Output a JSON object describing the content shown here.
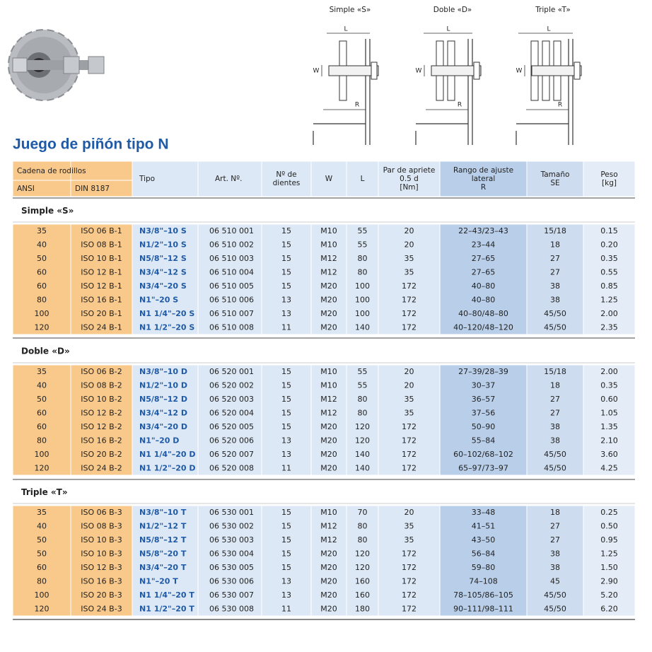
{
  "title": "Juego de piñón tipo N",
  "diagrams": [
    {
      "title": "Simple «S»",
      "labels": [
        "L",
        "W",
        "R"
      ]
    },
    {
      "title": "Doble «D»",
      "labels": [
        "L",
        "W",
        "R"
      ]
    },
    {
      "title": "Triple «T»",
      "labels": [
        "L",
        "W",
        "R"
      ]
    }
  ],
  "table": {
    "group_header": "Cadena de rodillos",
    "columns": [
      [
        "ANSI"
      ],
      [
        "DIN 8187"
      ],
      [
        "Tipo"
      ],
      [
        "Art. Nº."
      ],
      [
        "Nº de",
        "dientes"
      ],
      [
        "W"
      ],
      [
        "L"
      ],
      [
        "Par de apriete",
        "0.5 d",
        "[Nm]"
      ],
      [
        "Rango de ajuste",
        "lateral",
        "R"
      ],
      [
        "Tamaño",
        "SE"
      ],
      [
        "Peso",
        "[kg]"
      ]
    ],
    "sections": [
      {
        "title": "Simple «S»",
        "rows": [
          [
            "35",
            "ISO 06 B-1",
            "N3/8\"–10 S",
            "06 510 001",
            "15",
            "M10",
            "55",
            "20",
            "22–43/23–43",
            "15/18",
            "0.15"
          ],
          [
            "40",
            "ISO 08 B-1",
            "N1/2\"–10 S",
            "06 510 002",
            "15",
            "M10",
            "55",
            "20",
            "23–44",
            "18",
            "0.20"
          ],
          [
            "50",
            "ISO 10 B-1",
            "N5/8\"–12 S",
            "06 510 003",
            "15",
            "M12",
            "80",
            "35",
            "27–65",
            "27",
            "0.35"
          ],
          [
            "60",
            "ISO 12 B-1",
            "N3/4\"–12 S",
            "06 510 004",
            "15",
            "M12",
            "80",
            "35",
            "27–65",
            "27",
            "0.55"
          ],
          [
            "60",
            "ISO 12 B-1",
            "N3/4\"–20 S",
            "06 510 005",
            "15",
            "M20",
            "100",
            "172",
            "40–80",
            "38",
            "0.85"
          ],
          [
            "80",
            "ISO 16 B-1",
            "N1\"–20 S",
            "06 510 006",
            "13",
            "M20",
            "100",
            "172",
            "40–80",
            "38",
            "1.25"
          ],
          [
            "100",
            "ISO 20 B-1",
            "N1 1/4\"–20 S",
            "06 510 007",
            "13",
            "M20",
            "100",
            "172",
            "40–80/48–80",
            "45/50",
            "2.00"
          ],
          [
            "120",
            "ISO 24 B-1",
            "N1 1/2\"–20 S",
            "06 510 008",
            "11",
            "M20",
            "140",
            "172",
            "40–120/48–120",
            "45/50",
            "2.35"
          ]
        ]
      },
      {
        "title": "Doble «D»",
        "rows": [
          [
            "35",
            "ISO 06 B-2",
            "N3/8\"–10 D",
            "06 520 001",
            "15",
            "M10",
            "55",
            "20",
            "27–39/28–39",
            "15/18",
            "2.00"
          ],
          [
            "40",
            "ISO 08 B-2",
            "N1/2\"–10 D",
            "06 520 002",
            "15",
            "M10",
            "55",
            "20",
            "30–37",
            "18",
            "0.35"
          ],
          [
            "50",
            "ISO 10 B-2",
            "N5/8\"–12 D",
            "06 520 003",
            "15",
            "M12",
            "80",
            "35",
            "36–57",
            "27",
            "0.60"
          ],
          [
            "60",
            "ISO 12 B-2",
            "N3/4\"–12 D",
            "06 520 004",
            "15",
            "M12",
            "80",
            "35",
            "37–56",
            "27",
            "1.05"
          ],
          [
            "60",
            "ISO 12 B-2",
            "N3/4\"–20 D",
            "06 520 005",
            "15",
            "M20",
            "120",
            "172",
            "50–90",
            "38",
            "1.35"
          ],
          [
            "80",
            "ISO 16 B-2",
            "N1\"–20 D",
            "06 520 006",
            "13",
            "M20",
            "120",
            "172",
            "55–84",
            "38",
            "2.10"
          ],
          [
            "100",
            "ISO 20 B-2",
            "N1 1/4\"–20 D",
            "06 520 007",
            "13",
            "M20",
            "140",
            "172",
            "60–102/68–102",
            "45/50",
            "3.60"
          ],
          [
            "120",
            "ISO 24 B-2",
            "N1 1/2\"–20 D",
            "06 520 008",
            "11",
            "M20",
            "140",
            "172",
            "65–97/73–97",
            "45/50",
            "4.25"
          ]
        ]
      },
      {
        "title": "Triple «T»",
        "rows": [
          [
            "35",
            "ISO 06 B-3",
            "N3/8\"–10 T",
            "06 530 001",
            "15",
            "M10",
            "70",
            "20",
            "33–48",
            "18",
            "0.25"
          ],
          [
            "40",
            "ISO 08 B-3",
            "N1/2\"–12 T",
            "06 530 002",
            "15",
            "M12",
            "80",
            "35",
            "41–51",
            "27",
            "0.50"
          ],
          [
            "50",
            "ISO 10 B-3",
            "N5/8\"–12 T",
            "06 530 003",
            "15",
            "M12",
            "80",
            "35",
            "43–50",
            "27",
            "0.95"
          ],
          [
            "50",
            "ISO 10 B-3",
            "N5/8\"–20 T",
            "06 530 004",
            "15",
            "M20",
            "120",
            "172",
            "56–84",
            "38",
            "1.25"
          ],
          [
            "60",
            "ISO 12 B-3",
            "N3/4\"–20 T",
            "06 530 005",
            "15",
            "M20",
            "120",
            "172",
            "59–80",
            "38",
            "1.50"
          ],
          [
            "80",
            "ISO 16 B-3",
            "N1\"–20 T",
            "06 530 006",
            "13",
            "M20",
            "160",
            "172",
            "74–108",
            "45",
            "2.90"
          ],
          [
            "100",
            "ISO 20 B-3",
            "N1 1/4\"–20 T",
            "06 530 007",
            "13",
            "M20",
            "160",
            "172",
            "78–105/86–105",
            "45/50",
            "5.20"
          ],
          [
            "120",
            "ISO 24 B-3",
            "N1 1/2\"–20 T",
            "06 530 008",
            "11",
            "M20",
            "180",
            "172",
            "90–111/98–111",
            "45/50",
            "6.20"
          ]
        ]
      }
    ]
  }
}
